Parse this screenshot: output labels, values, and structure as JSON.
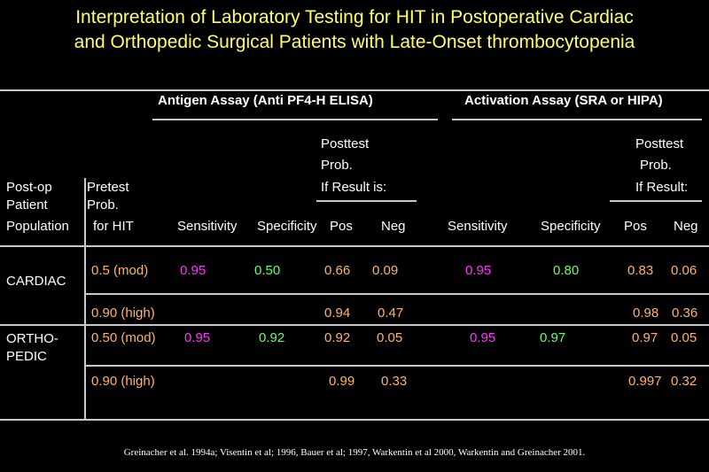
{
  "title": {
    "line1": "Interpretation of Laboratory Testing for HIT in Postoperative Cardiac",
    "line2": "and Orthopedic Surgical Patients with Late-Onset thrombocytopenia"
  },
  "header": {
    "antigen": "Antigen Assay (Anti PF4-H ELISA)",
    "activation": "Activation Assay (SRA or HIPA)",
    "posttest_antigen": [
      "Posttest",
      "Prob.",
      "If Result is:"
    ],
    "posttest_activation": [
      "Posttest",
      "Prob.",
      "If Result:"
    ],
    "postop": [
      "Post-op",
      "Patient",
      "Population"
    ],
    "pretest": [
      "Pretest",
      "Prob.",
      "for HIT"
    ],
    "sensitivity": "Sensitivity",
    "specificity": "Specificity",
    "pos": "Pos",
    "neg": "Neg"
  },
  "rows": {
    "cardiac": {
      "label": "CARDIAC",
      "mod": {
        "pretest": "0.5 (mod)",
        "ag_sens": "0.95",
        "ag_spec": "0.50",
        "ag_pos": "0.66",
        "ag_neg": "0.09",
        "ac_sens": "0.95",
        "ac_spec": "0.80",
        "ac_pos": "0.83",
        "ac_neg": "0.06"
      },
      "high": {
        "pretest": "0.90 (high)",
        "ag_pos": "0.94",
        "ag_neg": "0.47",
        "ac_pos": "0.98",
        "ac_neg": "0.36"
      }
    },
    "ortho": {
      "label": [
        "ORTHO-",
        "PEDIC"
      ],
      "mod": {
        "pretest": "0.50 (mod)",
        "ag_sens": "0.95",
        "ag_spec": "0.92",
        "ag_pos": "0.92",
        "ag_neg": "0.05",
        "ac_sens": "0.95",
        "ac_spec": "0.97",
        "ac_pos": "0.97",
        "ac_neg": "0.05"
      },
      "high": {
        "pretest": "0.90 (high)",
        "ag_pos": "0.99",
        "ag_neg": "0.33",
        "ac_pos": "0.997",
        "ac_neg": "0.32"
      }
    }
  },
  "reference": "Greinacher et al. 1994a; Visentin et al; 1996, Bauer et al; 1997, Warkentin et al 2000, Warkentin and Greinacher 2001.",
  "colors": {
    "title": "#ffff66",
    "pretest_values": "#ffb366",
    "sensitivity": "#ff33ff",
    "specificity": "#66ff66",
    "lines": "#c8c8c8"
  }
}
